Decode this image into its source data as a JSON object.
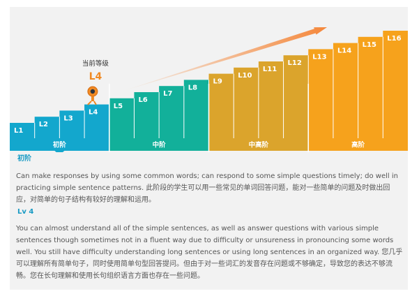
{
  "current": {
    "title": "当前等级",
    "level": "L4"
  },
  "bars": [
    {
      "label": "L1",
      "value": 1,
      "group": 0
    },
    {
      "label": "L2",
      "value": 2,
      "group": 0
    },
    {
      "label": "L3",
      "value": 3,
      "group": 0
    },
    {
      "label": "L4",
      "value": 4,
      "group": 0
    },
    {
      "label": "L5",
      "value": 5,
      "group": 1
    },
    {
      "label": "L6",
      "value": 6,
      "group": 1
    },
    {
      "label": "L7",
      "value": 7,
      "group": 1
    },
    {
      "label": "L8",
      "value": 8,
      "group": 1
    },
    {
      "label": "L9",
      "value": 9,
      "group": 2
    },
    {
      "label": "L10",
      "value": 10,
      "group": 2
    },
    {
      "label": "L11",
      "value": 11,
      "group": 2
    },
    {
      "label": "L12",
      "value": 12,
      "group": 2
    },
    {
      "label": "L13",
      "value": 13,
      "group": 3
    },
    {
      "label": "L14",
      "value": 14,
      "group": 3
    },
    {
      "label": "L15",
      "value": 15,
      "group": 3
    },
    {
      "label": "L16",
      "value": 16,
      "group": 3
    }
  ],
  "categories": [
    {
      "label": "初阶",
      "color": "#13a7cd",
      "selected": true
    },
    {
      "label": "中阶",
      "color": "#12b09a",
      "selected": false
    },
    {
      "label": "中高阶",
      "color": "#dba42c",
      "selected": false
    },
    {
      "label": "高阶",
      "color": "#f6a21c",
      "selected": false
    }
  ],
  "arrow_color": "#f5873a",
  "section": {
    "title": "初阶",
    "text": "Can make responses by using some common words; can respond to some simple questions timely; do well in practicing simple sentence patterns. 此阶段的学生可以用一些常见的单词回答问题，能对一些简单的问题及时做出回应，对简单的句子结构有较好的理解和运用。"
  },
  "level_detail": {
    "title": "Lv 4",
    "text": "You can almost understand all of the simple sentences, as well as answer questions with various simple sentences though sometimes not in a fluent way due to difficulty or unsureness in pronouncing some words well. You still have difficulty understanding long sentences or using long sentences in an organized way. 您几乎可以理解所有简单句子，同时使用简单句型回答提问。但由于对一些词汇的发音存在问题或不够确定，导致您的表达不够流畅。您在长句理解和使用长句组织语言方面也存在一些问题。"
  }
}
